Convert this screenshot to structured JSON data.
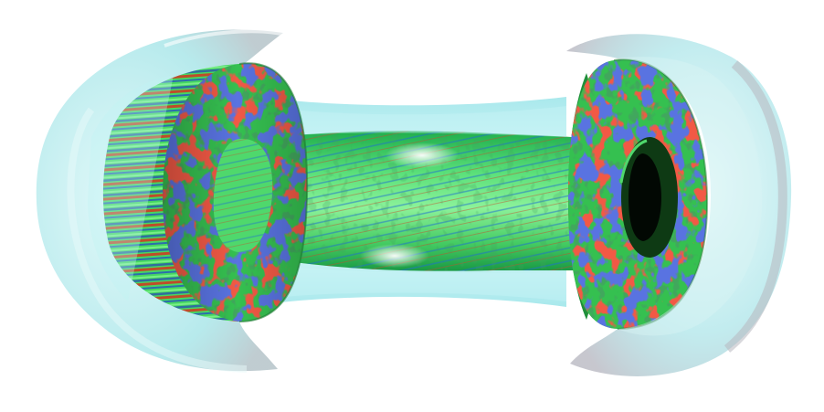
{
  "scene": {
    "subject": "tokamak-plasma-turbulence-cutaway",
    "colors": {
      "background": "#ffffff",
      "shell": "#9fe3e6",
      "shell_edge": "#c9c9cf",
      "plasma_green": "#3ad35a",
      "plasma_light": "#7bf28a",
      "turb_red": "#e21a10",
      "turb_blue": "#1a2bbf",
      "highlight": "#ffffff"
    },
    "components": [
      "outer-transparent-shell",
      "central-column",
      "left-poloidal-cross-section",
      "right-poloidal-cross-section",
      "turbulence-pattern"
    ]
  }
}
